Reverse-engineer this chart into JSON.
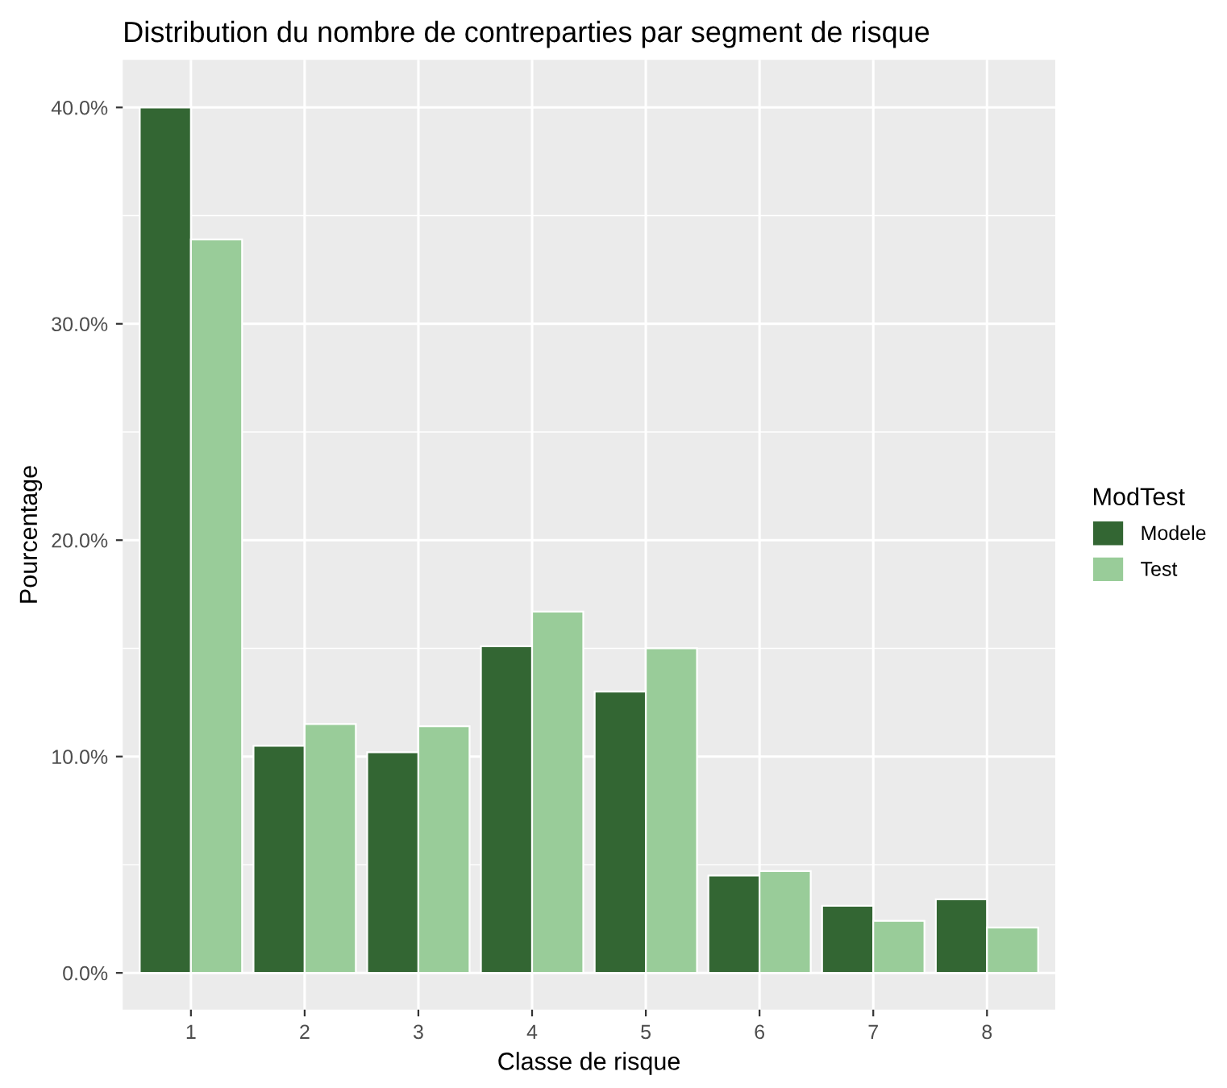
{
  "chart_data": {
    "type": "bar",
    "title": "Distribution du nombre de contreparties par segment de risque",
    "xlabel": "Classe de risque",
    "ylabel": "Pourcentage",
    "legend_title": "ModTest",
    "categories": [
      "1",
      "2",
      "3",
      "4",
      "5",
      "6",
      "7",
      "8"
    ],
    "series": [
      {
        "name": "Modele",
        "color": "#336633",
        "values": [
          40.0,
          10.5,
          10.2,
          15.1,
          13.0,
          4.5,
          3.1,
          3.4
        ]
      },
      {
        "name": "Test",
        "color": "#99cc99",
        "values": [
          33.9,
          11.5,
          11.4,
          16.7,
          15.0,
          4.7,
          2.4,
          2.1
        ]
      }
    ],
    "ylim": [
      -1.7,
      42.2
    ],
    "yticks": [
      {
        "value": 0,
        "label": "0.0%"
      },
      {
        "value": 10,
        "label": "10.0%"
      },
      {
        "value": 20,
        "label": "20.0%"
      },
      {
        "value": 30,
        "label": "30.0%"
      },
      {
        "value": 40,
        "label": "40.0%"
      }
    ],
    "grid": true,
    "legend": "right"
  }
}
